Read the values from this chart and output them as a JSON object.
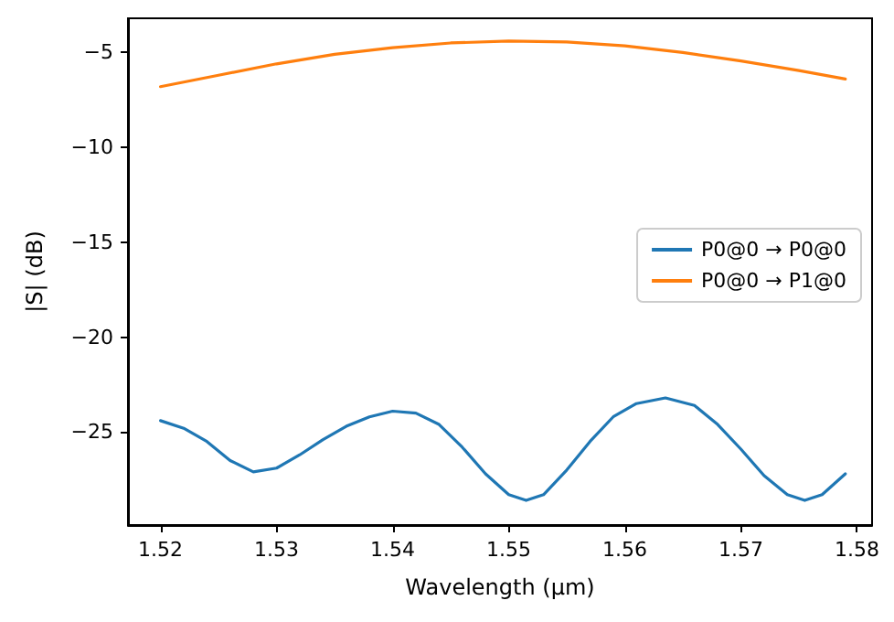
{
  "chart_data": {
    "type": "line",
    "xlabel": "Wavelength (µm)",
    "ylabel": "|S| (dB)",
    "xlim": [
      1.5172,
      1.5813
    ],
    "xticks": [
      1.52,
      1.53,
      1.54,
      1.55,
      1.56,
      1.57,
      1.58
    ],
    "ylim": [
      -29.9,
      -3.2
    ],
    "yticks": [
      -25,
      -20,
      -15,
      -10,
      -5
    ],
    "grid": false,
    "legend": "right",
    "marker": "none",
    "line_style": "solid",
    "series": [
      {
        "name": "P0@0 → P0@0",
        "color": "#1f77b4",
        "x": [
          1.52,
          1.522,
          1.524,
          1.526,
          1.528,
          1.53,
          1.532,
          1.534,
          1.536,
          1.538,
          1.54,
          1.542,
          1.544,
          1.546,
          1.548,
          1.55,
          1.5515,
          1.553,
          1.555,
          1.557,
          1.559,
          1.561,
          1.5635,
          1.566,
          1.568,
          1.57,
          1.572,
          1.574,
          1.5755,
          1.577,
          1.579
        ],
        "values": [
          -24.4,
          -24.8,
          -25.5,
          -26.5,
          -27.1,
          -26.9,
          -26.2,
          -25.4,
          -24.7,
          -24.2,
          -23.9,
          -24.0,
          -24.6,
          -25.8,
          -27.2,
          -28.3,
          -28.6,
          -28.3,
          -27.0,
          -25.5,
          -24.2,
          -23.5,
          -23.2,
          -23.6,
          -24.6,
          -25.9,
          -27.3,
          -28.3,
          -28.6,
          -28.3,
          -27.2
        ]
      },
      {
        "name": "P0@0 → P1@0",
        "color": "#ff7f0e",
        "x": [
          1.52,
          1.525,
          1.53,
          1.535,
          1.54,
          1.545,
          1.55,
          1.555,
          1.56,
          1.565,
          1.57,
          1.575,
          1.579
        ],
        "values": [
          -6.8,
          -6.2,
          -5.6,
          -5.1,
          -4.75,
          -4.5,
          -4.4,
          -4.45,
          -4.65,
          -5.0,
          -5.45,
          -5.95,
          -6.4
        ]
      }
    ]
  }
}
